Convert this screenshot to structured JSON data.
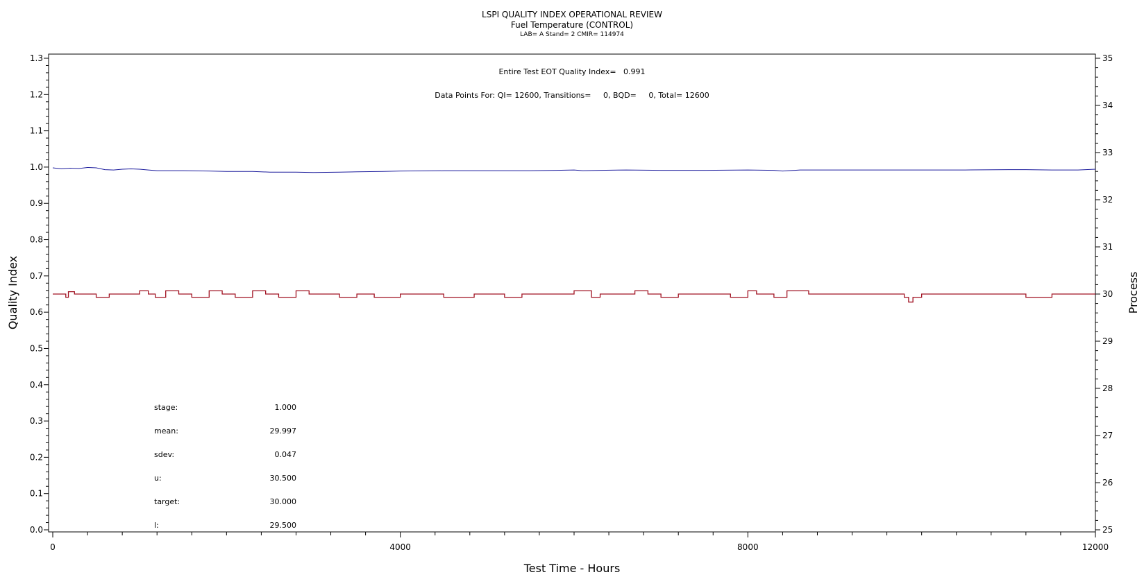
{
  "chart_data": {
    "type": "line",
    "title": "LSPI QUALITY INDEX OPERATIONAL REVIEW",
    "subtitle": "Fuel Temperature (CONTROL)",
    "subtitle2": "LAB= A Stand= 2 CMIR= 114974",
    "xlabel": "Test Time - Hours",
    "ylabel_left": "Quality Index",
    "ylabel_right": "Process",
    "xlim": [
      0,
      12000
    ],
    "ylim_left": [
      0.0,
      1.3
    ],
    "ylim_right": [
      25,
      35
    ],
    "x_ticks": [
      "0",
      "4000",
      "8000",
      "12000"
    ],
    "y_left_ticks": [
      "0.0",
      "0.1",
      "0.2",
      "0.3",
      "0.4",
      "0.5",
      "0.6",
      "0.7",
      "0.8",
      "0.9",
      "1.0",
      "1.1",
      "1.2",
      "1.3"
    ],
    "y_right_ticks": [
      "25",
      "26",
      "27",
      "28",
      "29",
      "30",
      "31",
      "32",
      "33",
      "34",
      "35"
    ],
    "annotations": {
      "quality_index_text": "Entire Test EOT Quality Index=   0.991",
      "data_points_text": "Data Points For: QI= 12600, Transitions=     0, BQD=     0, Total= 12600"
    },
    "stats": [
      {
        "label": "stage:",
        "value": "1.000"
      },
      {
        "label": "mean:",
        "value": "29.997"
      },
      {
        "label": "sdev:",
        "value": "0.047"
      },
      {
        "label": "u:",
        "value": "30.500"
      },
      {
        "label": "target:",
        "value": "30.000"
      },
      {
        "label": "l:",
        "value": "29.500"
      }
    ],
    "series": [
      {
        "axis": "left",
        "color": "#1a1a9c",
        "x": [
          0,
          100,
          200,
          300,
          400,
          500,
          600,
          700,
          800,
          900,
          1000,
          1100,
          1200,
          1300,
          1500,
          1800,
          2000,
          2300,
          2500,
          2800,
          3000,
          3300,
          3500,
          3800,
          4000,
          4500,
          5000,
          5500,
          5800,
          6000,
          6100,
          6300,
          6600,
          7000,
          7500,
          8000,
          8300,
          8400,
          8600,
          9000,
          9500,
          10000,
          10500,
          11000,
          11200,
          11500,
          11800,
          12000
        ],
        "y": [
          0.998,
          0.995,
          0.997,
          0.996,
          0.999,
          0.998,
          0.993,
          0.992,
          0.994,
          0.995,
          0.994,
          0.992,
          0.99,
          0.99,
          0.99,
          0.989,
          0.988,
          0.988,
          0.986,
          0.986,
          0.985,
          0.986,
          0.987,
          0.988,
          0.989,
          0.99,
          0.99,
          0.99,
          0.991,
          0.992,
          0.99,
          0.991,
          0.992,
          0.991,
          0.991,
          0.992,
          0.991,
          0.989,
          0.992,
          0.992,
          0.992,
          0.992,
          0.992,
          0.993,
          0.993,
          0.992,
          0.992,
          0.994
        ]
      },
      {
        "axis": "right",
        "color": "#a01020",
        "x": [
          0,
          150,
          180,
          250,
          400,
          500,
          650,
          900,
          1000,
          1100,
          1180,
          1300,
          1450,
          1600,
          1800,
          1950,
          2100,
          2300,
          2450,
          2600,
          2800,
          2950,
          3100,
          3300,
          3500,
          3700,
          4000,
          4500,
          4850,
          5000,
          5200,
          5400,
          5800,
          6000,
          6200,
          6300,
          6500,
          6700,
          6850,
          7000,
          7200,
          7500,
          7800,
          8000,
          8100,
          8300,
          8450,
          8700,
          9000,
          9500,
          9800,
          9850,
          9900,
          10000,
          10200,
          10500,
          11000,
          11200,
          11500,
          12000
        ],
        "y": [
          30.0,
          29.93,
          30.05,
          30.0,
          30.0,
          29.93,
          30.0,
          30.0,
          30.07,
          30.0,
          29.93,
          30.07,
          30.0,
          29.93,
          30.07,
          30.0,
          29.93,
          30.07,
          30.0,
          29.93,
          30.07,
          30.0,
          30.0,
          29.93,
          30.0,
          29.93,
          30.0,
          29.93,
          30.0,
          30.0,
          29.93,
          30.0,
          30.0,
          30.07,
          29.93,
          30.0,
          30.0,
          30.07,
          30.0,
          29.93,
          30.0,
          30.0,
          29.93,
          30.07,
          30.0,
          29.93,
          30.07,
          30.0,
          30.0,
          30.0,
          29.93,
          29.83,
          29.93,
          30.0,
          30.0,
          30.0,
          30.0,
          29.93,
          30.0,
          30.0
        ]
      }
    ]
  }
}
